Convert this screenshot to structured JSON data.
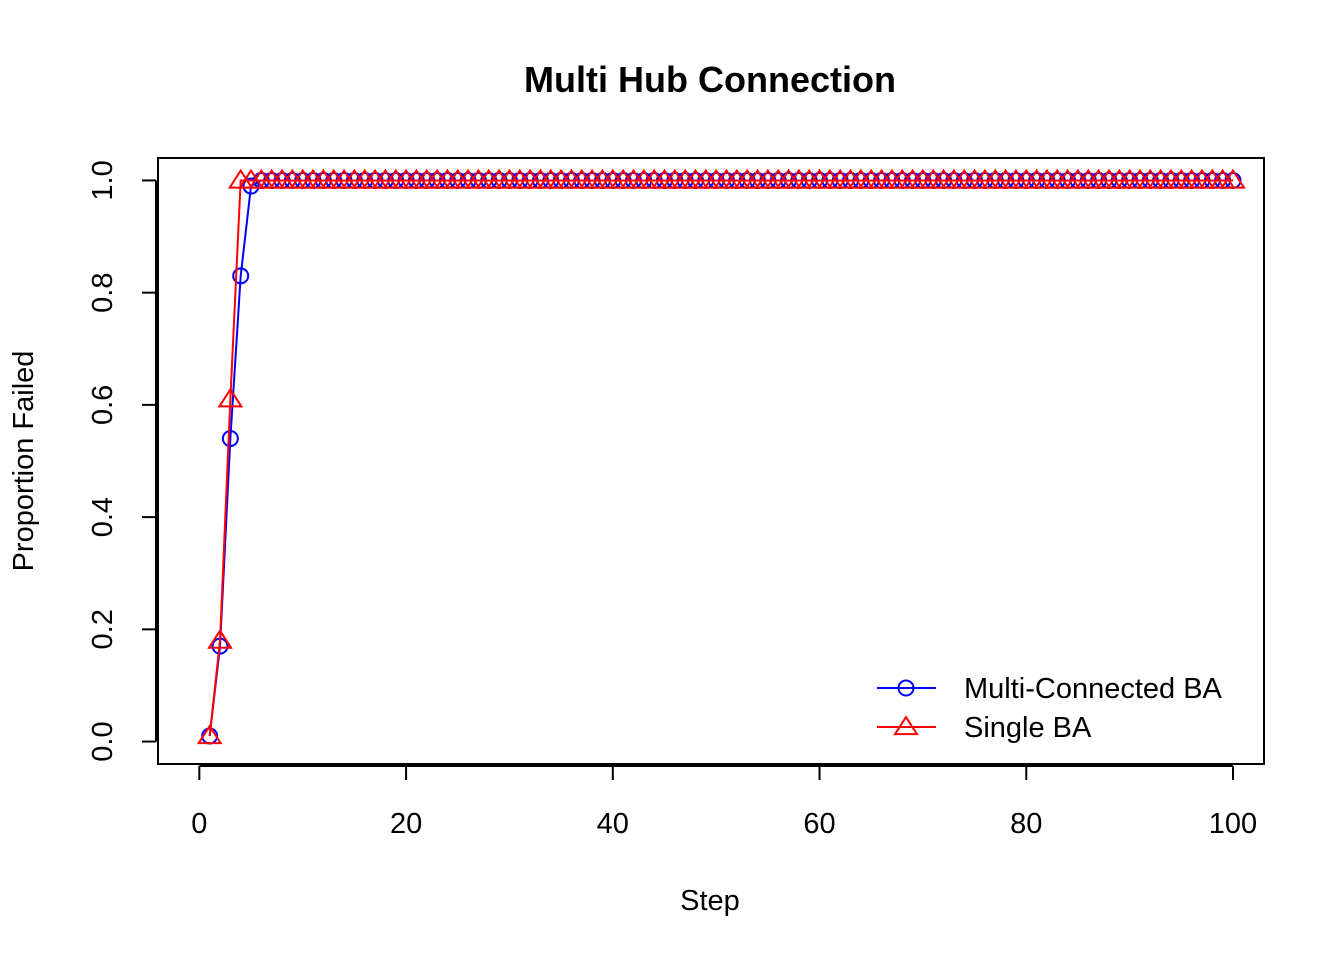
{
  "chart_data": {
    "type": "line",
    "title": "Multi Hub Connection",
    "xlabel": "Step",
    "ylabel": "Proportion Failed",
    "xlim": [
      -4,
      103
    ],
    "ylim": [
      -0.04,
      1.04
    ],
    "x_ticks": [
      0,
      20,
      40,
      60,
      80,
      100
    ],
    "x_tick_labels": [
      "0",
      "20",
      "40",
      "60",
      "80",
      "100"
    ],
    "y_ticks": [
      0.0,
      0.2,
      0.4,
      0.6,
      0.8,
      1.0
    ],
    "y_tick_labels": [
      "0.0",
      "0.2",
      "0.4",
      "0.6",
      "0.8",
      "1.0"
    ],
    "grid": false,
    "legend_position": "bottom-right",
    "x_range": [
      1,
      100
    ],
    "series": [
      {
        "name": "Multi-Connected BA",
        "color": "#0000ff",
        "marker": "circle",
        "initial_values": [
          0.01,
          0.17,
          0.54,
          0.83,
          0.99
        ],
        "plateau_value": 1.0
      },
      {
        "name": "Single BA",
        "color": "#ff0000",
        "marker": "triangle",
        "initial_values": [
          0.01,
          0.18,
          0.61,
          1.0
        ],
        "plateau_value": 1.0
      }
    ]
  }
}
